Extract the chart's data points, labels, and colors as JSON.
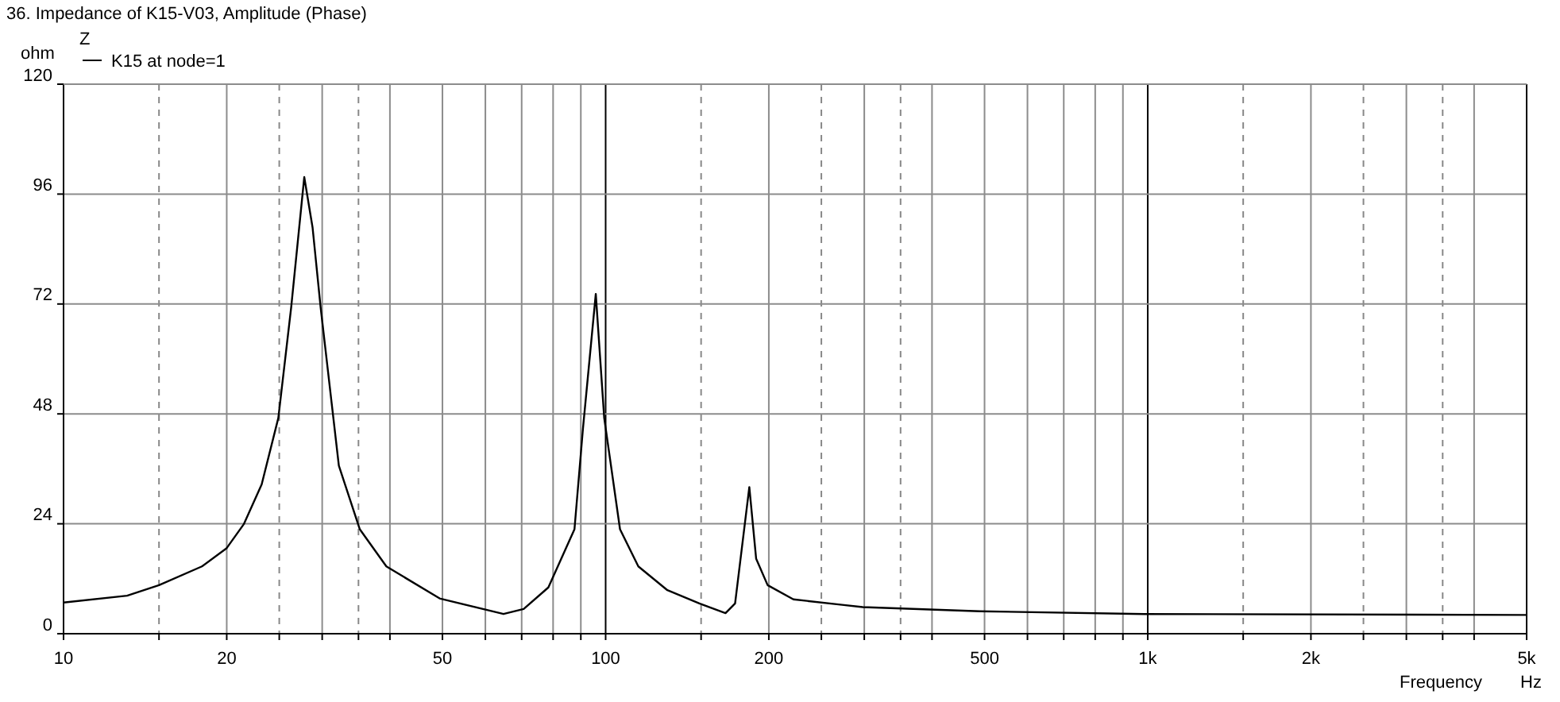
{
  "chart_data": {
    "type": "line",
    "title": "36. Impedance of K15-V03, Amplitude (Phase)",
    "xlabel": "Frequency",
    "ylabel": "ohm",
    "legend_title": "Z",
    "annotations": [
      "Hz"
    ],
    "log": "x",
    "grid": true,
    "legend": "top left",
    "xlim": [
      10,
      5000
    ],
    "ylim": [
      0,
      120
    ],
    "xticks": [
      10,
      {
        "value": 15,
        "label": null
      },
      20,
      {
        "value": 25,
        "label": null
      },
      {
        "value": 30,
        "label": null
      },
      {
        "value": 35,
        "label": null
      },
      {
        "value": 40,
        "label": null
      },
      50,
      {
        "value": 60,
        "label": null
      },
      {
        "value": 70,
        "label": null
      },
      {
        "value": 80,
        "label": null
      },
      {
        "value": 90,
        "label": null
      },
      100,
      {
        "value": 150,
        "label": null
      },
      200,
      {
        "value": 250,
        "label": null
      },
      {
        "value": 300,
        "label": null
      },
      {
        "value": 350,
        "label": null
      },
      {
        "value": 400,
        "label": null
      },
      500,
      {
        "value": 600,
        "label": null
      },
      {
        "value": 700,
        "label": null
      },
      {
        "value": 800,
        "label": null
      },
      {
        "value": 900,
        "label": null
      },
      {
        "value": 1000,
        "label": "1k"
      },
      {
        "value": 1500,
        "label": null
      },
      {
        "value": 2000,
        "label": "2k"
      },
      {
        "value": 2500,
        "label": null
      },
      {
        "value": 3000,
        "label": null
      },
      {
        "value": 3500,
        "label": null
      },
      {
        "value": 4000,
        "label": null
      },
      {
        "value": 5000,
        "label": "5k"
      }
    ],
    "yticks": [
      0,
      24,
      48,
      72,
      96,
      120
    ],
    "series": [
      {
        "name": "K15 at node=1",
        "color": "#000000",
        "x": [
          10,
          13.1,
          15,
          18,
          20,
          21.5,
          23.2,
          24.9,
          26.3,
          27.8,
          28.8,
          29.8,
          32.2,
          35.2,
          39.4,
          49.4,
          64.8,
          70.6,
          78.4,
          87.6,
          90.8,
          95.9,
          99.4,
          106.3,
          114.9,
          130,
          148.9,
          166.4,
          173.3,
          184.1,
          189.5,
          199,
          222,
          273,
          298,
          490,
          985,
          4900,
          5000
        ],
        "values": [
          6.8,
          8.3,
          10.6,
          14.7,
          18.7,
          23.9,
          32.6,
          47.1,
          71.3,
          99.7,
          88.7,
          71.3,
          36.7,
          22.8,
          14.7,
          7.7,
          4.3,
          5.4,
          10.1,
          22.8,
          44.7,
          74.2,
          47.1,
          22.8,
          14.7,
          9.5,
          6.6,
          4.5,
          6.6,
          32,
          16.4,
          10.6,
          7.5,
          6.3,
          5.8,
          4.9,
          4.3,
          4.1,
          4.1
        ]
      }
    ]
  }
}
